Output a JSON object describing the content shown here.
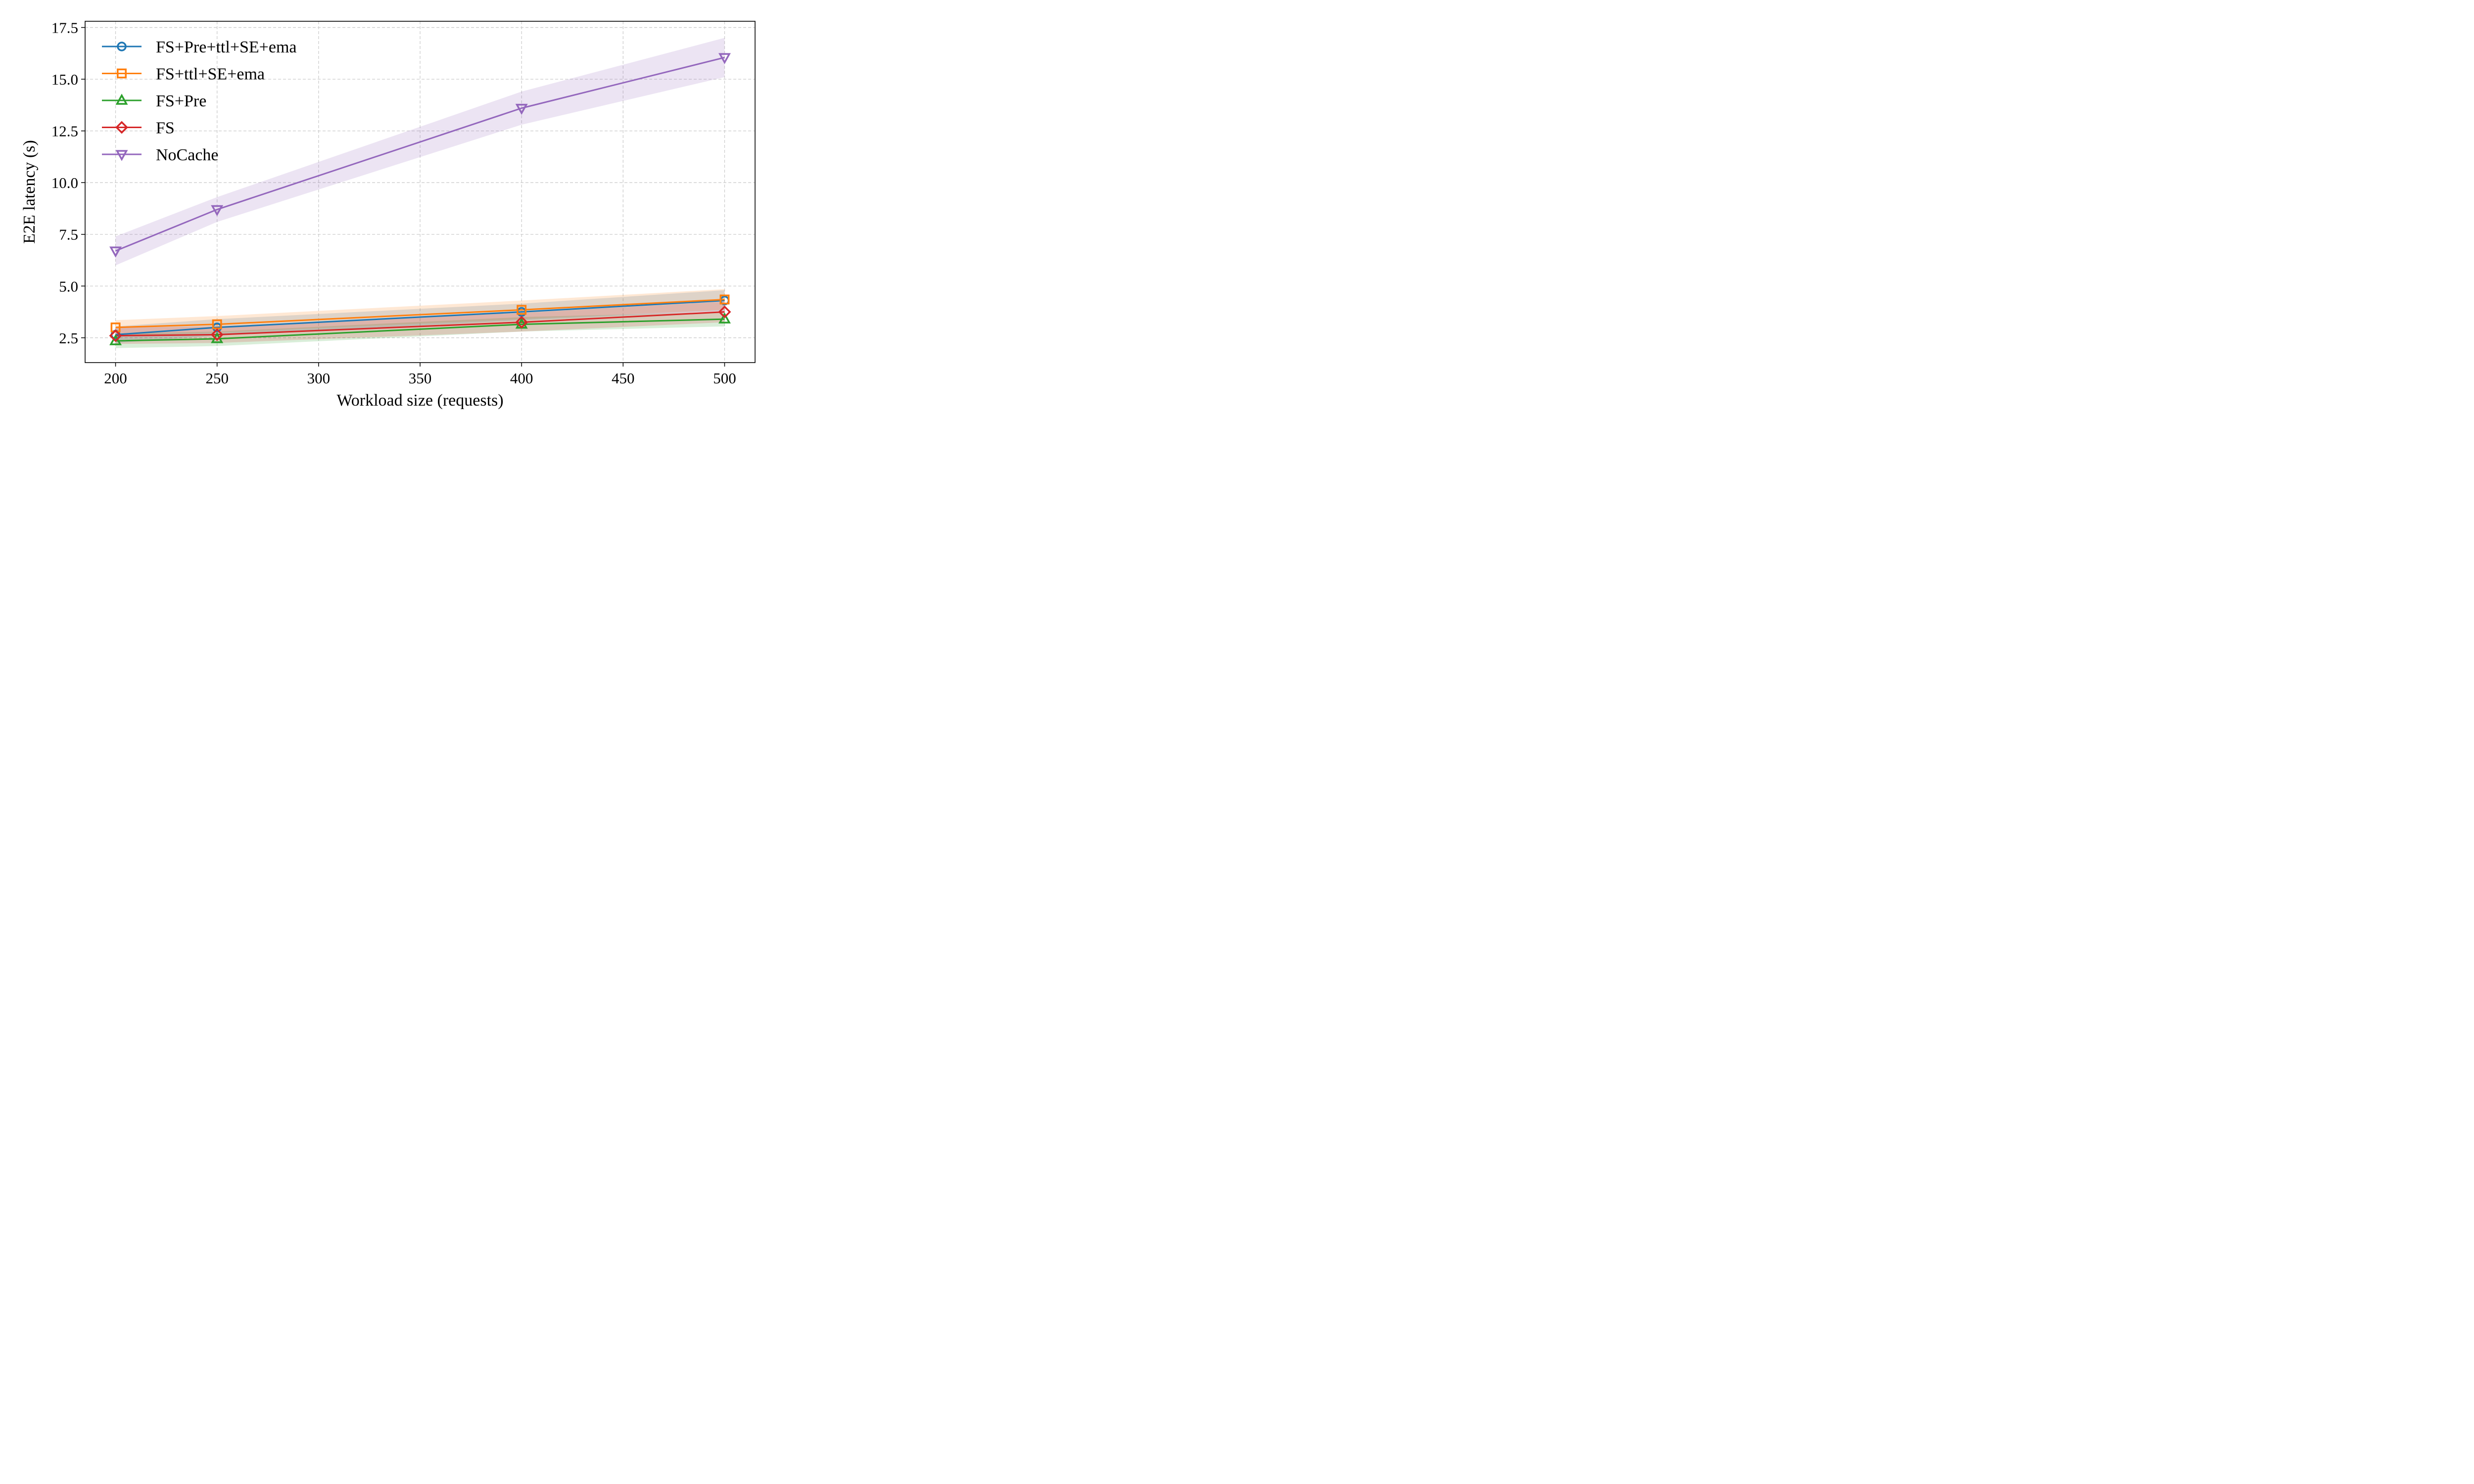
{
  "chart_data": {
    "type": "line",
    "title": "",
    "xlabel": "Workload size (requests)",
    "ylabel": "E2E latency (s)",
    "xlim": [
      185,
      515
    ],
    "ylim": [
      1.3,
      17.8
    ],
    "xticks": [
      200,
      250,
      300,
      350,
      400,
      450,
      500
    ],
    "xtick_labels": [
      "200",
      "250",
      "300",
      "350",
      "400",
      "450",
      "500"
    ],
    "yticks": [
      2.5,
      5.0,
      7.5,
      10.0,
      12.5,
      15.0,
      17.5
    ],
    "ytick_labels": [
      "2.5",
      "5.0",
      "7.5",
      "10.0",
      "12.5",
      "15.0",
      "17.5"
    ],
    "grid": true,
    "legend_position": "top-left",
    "x": [
      200,
      250,
      400,
      500
    ],
    "series": [
      {
        "name": "FS+Pre+ttl+SE+ema",
        "color": "#1f77b4",
        "marker": "circle",
        "values": [
          2.65,
          3.0,
          3.75,
          4.3
        ],
        "band_low": [
          2.25,
          2.6,
          3.35,
          3.8
        ],
        "band_high": [
          3.05,
          3.4,
          4.15,
          4.8
        ]
      },
      {
        "name": "FS+ttl+SE+ema",
        "color": "#ff7f0e",
        "marker": "square",
        "values": [
          3.0,
          3.15,
          3.85,
          4.35
        ],
        "band_low": [
          2.6,
          2.75,
          3.4,
          3.85
        ],
        "band_high": [
          3.35,
          3.55,
          4.3,
          4.85
        ]
      },
      {
        "name": "FS+Pre",
        "color": "#2ca02c",
        "marker": "triangle-up",
        "values": [
          2.35,
          2.45,
          3.15,
          3.4
        ],
        "band_low": [
          2.0,
          2.1,
          2.8,
          3.05
        ],
        "band_high": [
          2.7,
          2.8,
          3.5,
          3.75
        ]
      },
      {
        "name": "FS",
        "color": "#d62728",
        "marker": "diamond",
        "values": [
          2.6,
          2.65,
          3.25,
          3.75
        ],
        "band_low": [
          2.2,
          2.25,
          2.8,
          3.25
        ],
        "band_high": [
          3.0,
          3.05,
          3.7,
          4.25
        ]
      },
      {
        "name": "NoCache",
        "color": "#9467bd",
        "marker": "triangle-down",
        "values": [
          6.7,
          8.7,
          13.6,
          16.05
        ],
        "band_low": [
          6.0,
          8.1,
          12.8,
          15.1
        ],
        "band_high": [
          7.4,
          9.3,
          14.4,
          17.0
        ]
      }
    ]
  }
}
